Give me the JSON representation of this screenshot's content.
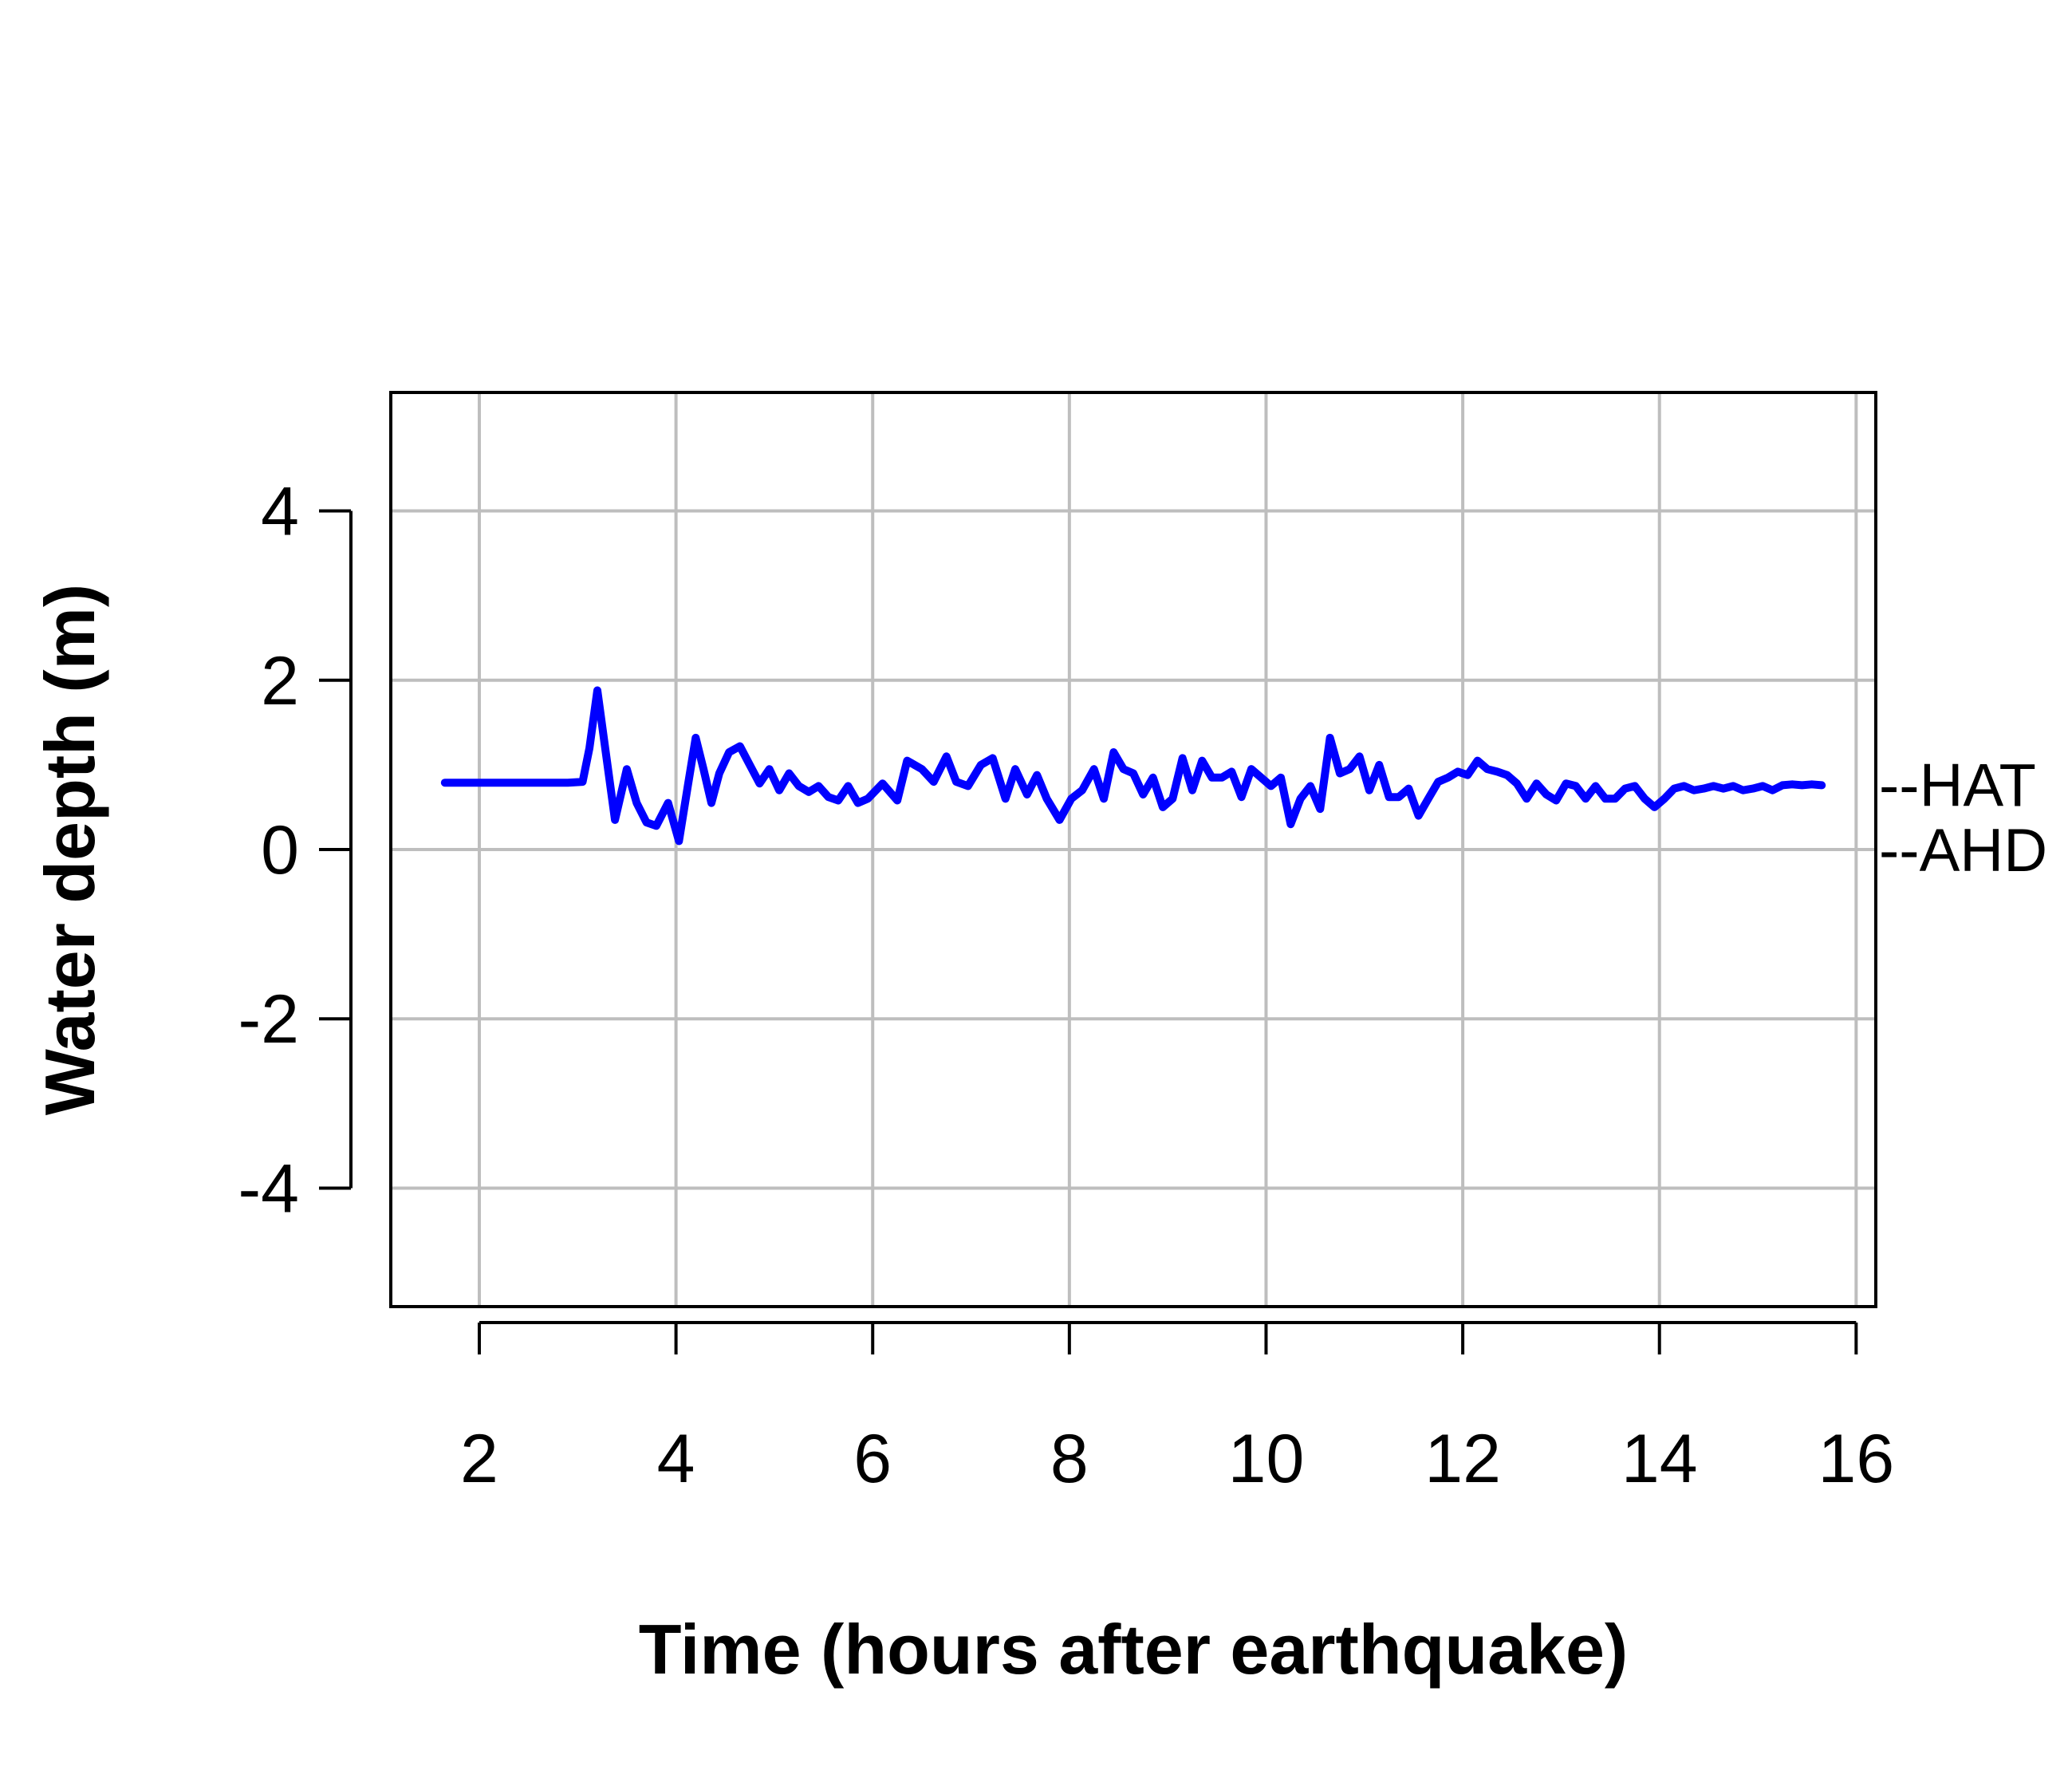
{
  "chart_data": {
    "type": "line",
    "title": "",
    "xlabel": "Time (hours after earthquake)",
    "ylabel": "Water depth (m)",
    "xlim": [
      1.1,
      16.2
    ],
    "ylim": [
      -5.4,
      5.4
    ],
    "xticks": [
      2,
      4,
      6,
      8,
      10,
      12,
      14,
      16
    ],
    "xtick_labels": [
      "2",
      "4",
      "6",
      "8",
      "10",
      "12",
      "14",
      "16"
    ],
    "yticks": [
      -4,
      -2,
      0,
      2,
      4
    ],
    "ytick_labels": [
      "-4",
      "-2",
      "0",
      "2",
      "4"
    ],
    "grid": true,
    "line_color": "#0000ff",
    "grid_color": "#bebebe",
    "reference_lines": [
      {
        "label": "--HAT",
        "y": 0.77
      },
      {
        "label": "--AHD",
        "y": 0.0
      }
    ],
    "series": [
      {
        "x": [
          1.65,
          2.0,
          2.5,
          2.9,
          3.05,
          3.12,
          3.2,
          3.28,
          3.38,
          3.5,
          3.6,
          3.7,
          3.8,
          3.92,
          4.03,
          4.12,
          4.2,
          4.28,
          4.36,
          4.44,
          4.54,
          4.65,
          4.75,
          4.85,
          4.95,
          5.05,
          5.15,
          5.25,
          5.35,
          5.45,
          5.55,
          5.65,
          5.75,
          5.85,
          5.95,
          6.1,
          6.25,
          6.35,
          6.5,
          6.62,
          6.75,
          6.85,
          6.97,
          7.1,
          7.22,
          7.35,
          7.45,
          7.57,
          7.67,
          7.77,
          7.9,
          8.02,
          8.13,
          8.25,
          8.35,
          8.45,
          8.55,
          8.65,
          8.75,
          8.85,
          8.95,
          9.05,
          9.15,
          9.25,
          9.35,
          9.45,
          9.55,
          9.65,
          9.75,
          9.85,
          9.95,
          10.05,
          10.15,
          10.25,
          10.35,
          10.45,
          10.55,
          10.65,
          10.75,
          10.85,
          10.95,
          11.05,
          11.15,
          11.25,
          11.35,
          11.45,
          11.55,
          11.65,
          11.75,
          11.85,
          11.95,
          12.05,
          12.15,
          12.25,
          12.35,
          12.45,
          12.55,
          12.65,
          12.75,
          12.85,
          12.95,
          13.05,
          13.15,
          13.25,
          13.35,
          13.45,
          13.55,
          13.65,
          13.75,
          13.85,
          13.95,
          14.05,
          14.15,
          14.25,
          14.35,
          14.45,
          14.55,
          14.65,
          14.75,
          14.85,
          14.95,
          15.05,
          15.15,
          15.25,
          15.35,
          15.45,
          15.55,
          15.65
        ],
        "y": [
          0.79,
          0.79,
          0.79,
          0.79,
          0.8,
          1.2,
          1.88,
          1.2,
          0.35,
          0.95,
          0.55,
          0.32,
          0.28,
          0.55,
          0.1,
          0.75,
          1.32,
          0.95,
          0.55,
          0.9,
          1.15,
          1.22,
          1.0,
          0.78,
          0.95,
          0.7,
          0.9,
          0.75,
          0.68,
          0.75,
          0.62,
          0.58,
          0.75,
          0.55,
          0.6,
          0.78,
          0.58,
          1.05,
          0.95,
          0.8,
          1.1,
          0.8,
          0.75,
          1.0,
          1.08,
          0.6,
          0.95,
          0.65,
          0.88,
          0.6,
          0.35,
          0.6,
          0.7,
          0.95,
          0.6,
          1.15,
          0.95,
          0.9,
          0.65,
          0.85,
          0.5,
          0.6,
          1.08,
          0.7,
          1.05,
          0.85,
          0.85,
          0.92,
          0.62,
          0.95,
          0.85,
          0.75,
          0.85,
          0.3,
          0.6,
          0.75,
          0.48,
          1.32,
          0.9,
          0.95,
          1.1,
          0.7,
          1.0,
          0.62,
          0.62,
          0.72,
          0.4,
          0.6,
          0.8,
          0.85,
          0.92,
          0.88,
          1.05,
          0.95,
          0.92,
          0.88,
          0.78,
          0.6,
          0.78,
          0.65,
          0.58,
          0.78,
          0.75,
          0.6,
          0.75,
          0.6,
          0.6,
          0.72,
          0.75,
          0.6,
          0.5,
          0.6,
          0.72,
          0.75,
          0.7,
          0.72,
          0.75,
          0.72,
          0.75,
          0.7,
          0.72,
          0.75,
          0.7,
          0.76,
          0.77,
          0.76,
          0.77,
          0.76
        ]
      }
    ]
  }
}
